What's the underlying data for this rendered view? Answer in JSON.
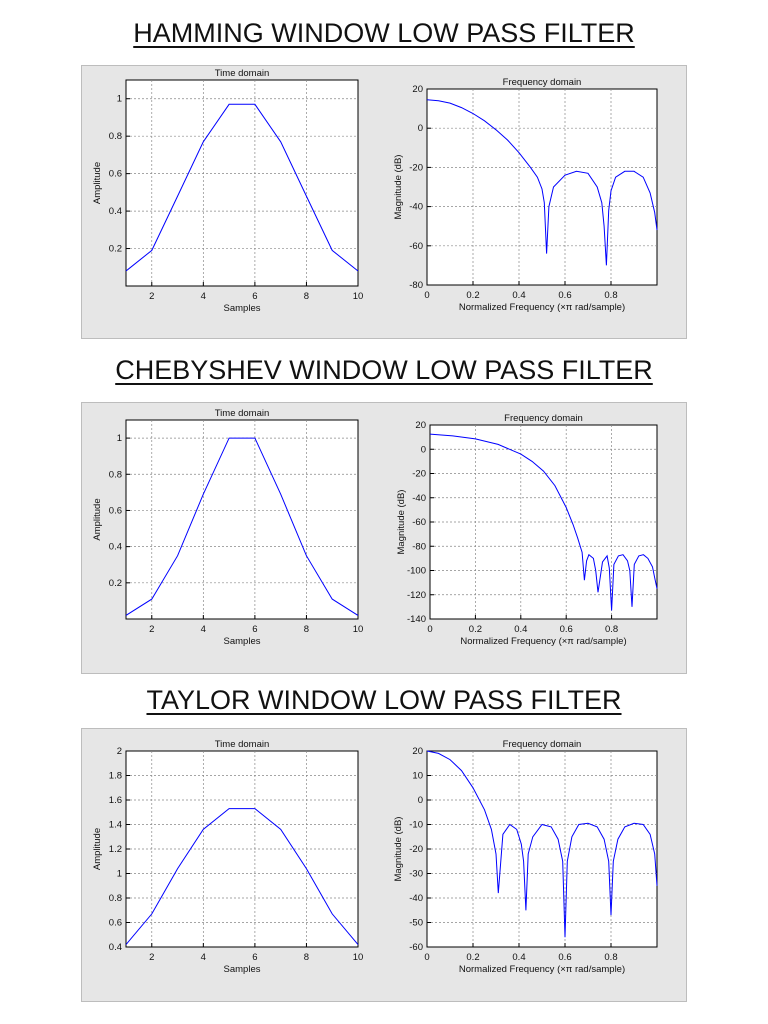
{
  "sections": [
    {
      "heading": "HAMMING WINDOW LOW PASS FILTER"
    },
    {
      "heading": "CHEBYSHEV WINDOW LOW PASS FILTER"
    },
    {
      "heading": "TAYLOR WINDOW LOW PASS FILTER"
    }
  ],
  "colors": {
    "line": "#0000ff",
    "grid": "#888888",
    "panel": "#e6e6e6"
  },
  "chart_data": [
    {
      "type": "line",
      "title": "Time domain",
      "xlabel": "Samples",
      "ylabel": "Amplitude",
      "xlim": [
        1,
        10
      ],
      "ylim": [
        0,
        1.1
      ],
      "xticks": [
        2,
        4,
        6,
        8,
        10
      ],
      "yticks": [
        0.2,
        0.4,
        0.6,
        0.8,
        1
      ],
      "ytick_labels": [
        "0.2",
        "0.4",
        "0.6",
        "0.8",
        "1"
      ],
      "grid": true,
      "x": [
        1,
        2,
        3,
        4,
        5,
        6,
        7,
        8,
        9,
        10
      ],
      "y": [
        0.08,
        0.19,
        0.48,
        0.77,
        0.97,
        0.97,
        0.77,
        0.48,
        0.19,
        0.08
      ]
    },
    {
      "type": "line",
      "title": "Frequency domain",
      "xlabel": "Normalized Frequency  (×π rad/sample)",
      "ylabel": "Magnitude (dB)",
      "xlim": [
        0,
        1
      ],
      "ylim": [
        -80,
        20
      ],
      "xticks": [
        0,
        0.2,
        0.4,
        0.6,
        0.8
      ],
      "yticks": [
        20,
        0,
        -20,
        -40,
        -60,
        -80
      ],
      "xtick_labels": [
        "0",
        "0.2",
        "0.4",
        "0.6",
        "0.8"
      ],
      "ytick_labels": [
        "20",
        "0",
        "-20",
        "-40",
        "-60",
        "-80"
      ],
      "grid": true,
      "x": [
        0,
        0.05,
        0.1,
        0.15,
        0.2,
        0.25,
        0.3,
        0.35,
        0.4,
        0.45,
        0.48,
        0.5,
        0.51,
        0.52,
        0.53,
        0.55,
        0.6,
        0.65,
        0.7,
        0.74,
        0.76,
        0.77,
        0.78,
        0.79,
        0.8,
        0.82,
        0.86,
        0.9,
        0.94,
        0.97,
        0.99,
        1.0
      ],
      "y": [
        14.5,
        14,
        12.8,
        10.5,
        7.5,
        3.8,
        -0.8,
        -6,
        -12.5,
        -20,
        -25,
        -31,
        -38,
        -64,
        -40,
        -30,
        -24,
        -22,
        -23,
        -30,
        -38,
        -50,
        -70,
        -42,
        -32,
        -25,
        -22,
        -22,
        -25,
        -33,
        -43,
        -52
      ]
    },
    {
      "type": "line",
      "title": "Time domain",
      "xlabel": "Samples",
      "ylabel": "Amplitude",
      "xlim": [
        1,
        10
      ],
      "ylim": [
        0,
        1.1
      ],
      "xticks": [
        2,
        4,
        6,
        8,
        10
      ],
      "yticks": [
        0.2,
        0.4,
        0.6,
        0.8,
        1
      ],
      "ytick_labels": [
        "0.2",
        "0.4",
        "0.6",
        "0.8",
        "1"
      ],
      "grid": true,
      "x": [
        1,
        2,
        3,
        4,
        5,
        6,
        7,
        8,
        9,
        10
      ],
      "y": [
        0.02,
        0.11,
        0.35,
        0.69,
        1,
        1,
        0.69,
        0.35,
        0.11,
        0.02
      ]
    },
    {
      "type": "line",
      "title": "Frequency domain",
      "xlabel": "Normalized Frequency  (×π rad/sample)",
      "ylabel": "Magnitude (dB)",
      "xlim": [
        0,
        1
      ],
      "ylim": [
        -140,
        20
      ],
      "xticks": [
        0,
        0.2,
        0.4,
        0.6,
        0.8
      ],
      "yticks": [
        20,
        0,
        -20,
        -40,
        -60,
        -80,
        -100,
        -120,
        -140
      ],
      "xtick_labels": [
        "0",
        "0.2",
        "0.4",
        "0.6",
        "0.8"
      ],
      "ytick_labels": [
        "20",
        "0",
        "-20",
        "-40",
        "-60",
        "-80",
        "-100",
        "-120",
        "-140"
      ],
      "grid": true,
      "x": [
        0,
        0.1,
        0.2,
        0.3,
        0.4,
        0.45,
        0.5,
        0.55,
        0.6,
        0.63,
        0.65,
        0.67,
        0.68,
        0.69,
        0.7,
        0.72,
        0.73,
        0.74,
        0.76,
        0.78,
        0.79,
        0.8,
        0.81,
        0.83,
        0.85,
        0.87,
        0.88,
        0.89,
        0.9,
        0.92,
        0.94,
        0.96,
        0.98,
        0.99,
        1.0
      ],
      "y": [
        12.5,
        11,
        8.5,
        4,
        -4,
        -10,
        -18,
        -30,
        -48,
        -62,
        -73,
        -85,
        -108,
        -92,
        -87,
        -90,
        -100,
        -118,
        -93,
        -88,
        -98,
        -133,
        -95,
        -88,
        -87,
        -92,
        -100,
        -130,
        -95,
        -88,
        -87,
        -90,
        -97,
        -106,
        -115
      ]
    },
    {
      "type": "line",
      "title": "Time domain",
      "xlabel": "Samples",
      "ylabel": "Amplitude",
      "xlim": [
        1,
        10
      ],
      "ylim": [
        0.4,
        2
      ],
      "xticks": [
        2,
        4,
        6,
        8,
        10
      ],
      "yticks": [
        0.4,
        0.6,
        0.8,
        1,
        1.2,
        1.4,
        1.6,
        1.8,
        2
      ],
      "ytick_labels": [
        "0.4",
        "0.6",
        "0.8",
        "1",
        "1.2",
        "1.4",
        "1.6",
        "1.8",
        "2"
      ],
      "grid": true,
      "x": [
        1,
        2,
        3,
        4,
        5,
        6,
        7,
        8,
        9,
        10
      ],
      "y": [
        0.42,
        0.67,
        1.04,
        1.36,
        1.53,
        1.53,
        1.36,
        1.04,
        0.67,
        0.42
      ]
    },
    {
      "type": "line",
      "title": "Frequency domain",
      "xlabel": "Normalized Frequency  (×π rad/sample)",
      "ylabel": "Magnitude (dB)",
      "xlim": [
        0,
        1
      ],
      "ylim": [
        -60,
        20
      ],
      "xticks": [
        0,
        0.2,
        0.4,
        0.6,
        0.8
      ],
      "yticks": [
        20,
        10,
        0,
        -10,
        -20,
        -30,
        -40,
        -50,
        -60
      ],
      "xtick_labels": [
        "0",
        "0.2",
        "0.4",
        "0.6",
        "0.8"
      ],
      "ytick_labels": [
        "20",
        "10",
        "0",
        "-10",
        "-20",
        "-30",
        "-40",
        "-50",
        "-60"
      ],
      "grid": true,
      "x": [
        0,
        0.05,
        0.1,
        0.15,
        0.2,
        0.25,
        0.28,
        0.3,
        0.31,
        0.33,
        0.36,
        0.39,
        0.41,
        0.42,
        0.43,
        0.44,
        0.46,
        0.5,
        0.54,
        0.57,
        0.59,
        0.6,
        0.61,
        0.63,
        0.66,
        0.7,
        0.74,
        0.77,
        0.79,
        0.8,
        0.81,
        0.83,
        0.86,
        0.9,
        0.94,
        0.97,
        0.99,
        1.0
      ],
      "y": [
        20,
        19,
        16.5,
        12,
        5,
        -4,
        -12,
        -22,
        -38,
        -14,
        -10,
        -12,
        -18,
        -25,
        -45,
        -22,
        -15,
        -10,
        -11,
        -16,
        -25,
        -56,
        -25,
        -15,
        -10,
        -9.5,
        -11,
        -16,
        -25,
        -47,
        -25,
        -16,
        -11,
        -9.5,
        -10,
        -14,
        -22,
        -35
      ]
    }
  ]
}
